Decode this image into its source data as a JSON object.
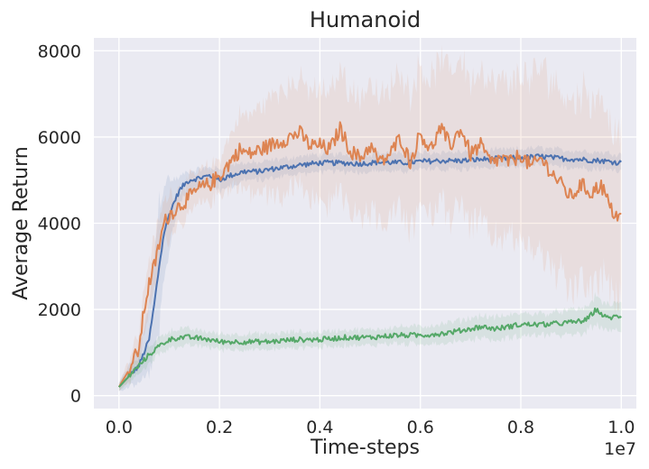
{
  "chart_data": {
    "type": "line",
    "title": "Humanoid",
    "xlabel": "Time-steps",
    "ylabel": "Average Return",
    "x_offset_label": "1e7",
    "xlim": [
      -0.05,
      1.03
    ],
    "ylim": [
      -300,
      8300
    ],
    "xticks": [
      0.0,
      0.2,
      0.4,
      0.6,
      0.8,
      1.0
    ],
    "xtick_labels": [
      "0.0",
      "0.2",
      "0.4",
      "0.6",
      "0.8",
      "1.0"
    ],
    "yticks": [
      0,
      2000,
      4000,
      6000,
      8000
    ],
    "ytick_labels": [
      "0",
      "2000",
      "4000",
      "6000",
      "8000"
    ],
    "grid": true,
    "legend": "none",
    "series": [
      {
        "color": "#4c72b0",
        "fill_opacity": 0.12,
        "x": [
          0.0,
          0.02,
          0.04,
          0.06,
          0.07,
          0.08,
          0.09,
          0.1,
          0.11,
          0.12,
          0.13,
          0.14,
          0.16,
          0.18,
          0.2,
          0.22,
          0.25,
          0.28,
          0.3,
          0.33,
          0.36,
          0.4,
          0.44,
          0.48,
          0.52,
          0.56,
          0.6,
          0.64,
          0.68,
          0.72,
          0.76,
          0.8,
          0.84,
          0.88,
          0.92,
          0.96,
          1.0
        ],
        "y": [
          200,
          450,
          700,
          1300,
          2100,
          3000,
          3800,
          4200,
          4500,
          4750,
          4900,
          5000,
          5050,
          5100,
          5000,
          5100,
          5200,
          5200,
          5250,
          5300,
          5350,
          5400,
          5400,
          5380,
          5420,
          5400,
          5430,
          5450,
          5450,
          5480,
          5500,
          5520,
          5550,
          5500,
          5480,
          5450,
          5400
        ],
        "band": [
          100,
          250,
          400,
          800,
          1200,
          1500,
          1200,
          800,
          500,
          300,
          250,
          200,
          200,
          200,
          250,
          250,
          200,
          200,
          200,
          200,
          200,
          200,
          200,
          200,
          200,
          200,
          200,
          200,
          200,
          200,
          200,
          200,
          200,
          200,
          200,
          200,
          200
        ]
      },
      {
        "color": "#dd8452",
        "fill_opacity": 0.12,
        "x": [
          0.0,
          0.02,
          0.04,
          0.05,
          0.06,
          0.07,
          0.08,
          0.09,
          0.1,
          0.12,
          0.14,
          0.16,
          0.18,
          0.2,
          0.22,
          0.24,
          0.26,
          0.28,
          0.3,
          0.32,
          0.34,
          0.36,
          0.38,
          0.4,
          0.42,
          0.44,
          0.46,
          0.48,
          0.5,
          0.52,
          0.54,
          0.56,
          0.58,
          0.6,
          0.62,
          0.64,
          0.66,
          0.68,
          0.7,
          0.72,
          0.74,
          0.76,
          0.78,
          0.8,
          0.82,
          0.84,
          0.86,
          0.88,
          0.9,
          0.92,
          0.94,
          0.96,
          0.98,
          1.0
        ],
        "y": [
          200,
          600,
          1100,
          2000,
          2600,
          3000,
          3500,
          4000,
          4200,
          4400,
          4600,
          4800,
          4900,
          5100,
          5400,
          5700,
          5600,
          5700,
          5800,
          5900,
          6000,
          6100,
          5800,
          5800,
          5700,
          6200,
          5700,
          5500,
          5800,
          5400,
          5600,
          6000,
          5400,
          6100,
          5700,
          6200,
          5800,
          6200,
          5600,
          5800,
          5400,
          5500,
          5400,
          5600,
          5300,
          5500,
          5200,
          4900,
          4600,
          4900,
          4700,
          4900,
          4300,
          4100
        ],
        "band": [
          100,
          250,
          400,
          500,
          600,
          600,
          600,
          500,
          500,
          400,
          400,
          400,
          400,
          400,
          600,
          800,
          900,
          1000,
          1100,
          1200,
          1200,
          1200,
          1300,
          1300,
          1300,
          1400,
          1400,
          1400,
          1500,
          1500,
          1500,
          1600,
          1600,
          1600,
          1600,
          1600,
          1700,
          1700,
          1700,
          1800,
          1800,
          1800,
          1800,
          1900,
          2000,
          2100,
          2200,
          2200,
          2200,
          2200,
          2200,
          2100,
          2000,
          1900
        ]
      },
      {
        "color": "#55a868",
        "fill_opacity": 0.12,
        "x": [
          0.0,
          0.02,
          0.04,
          0.06,
          0.08,
          0.1,
          0.12,
          0.14,
          0.16,
          0.18,
          0.2,
          0.25,
          0.3,
          0.35,
          0.4,
          0.45,
          0.5,
          0.55,
          0.6,
          0.65,
          0.7,
          0.72,
          0.75,
          0.8,
          0.85,
          0.9,
          0.93,
          0.95,
          0.97,
          1.0
        ],
        "y": [
          200,
          450,
          700,
          950,
          1150,
          1300,
          1350,
          1350,
          1330,
          1300,
          1250,
          1250,
          1250,
          1300,
          1300,
          1350,
          1350,
          1400,
          1400,
          1450,
          1550,
          1600,
          1550,
          1650,
          1650,
          1700,
          1750,
          2000,
          1800,
          1850
        ],
        "band": [
          80,
          150,
          200,
          200,
          200,
          200,
          200,
          200,
          180,
          180,
          180,
          180,
          180,
          180,
          180,
          180,
          180,
          200,
          200,
          220,
          250,
          260,
          260,
          260,
          260,
          280,
          300,
          320,
          300,
          300
        ]
      }
    ]
  }
}
